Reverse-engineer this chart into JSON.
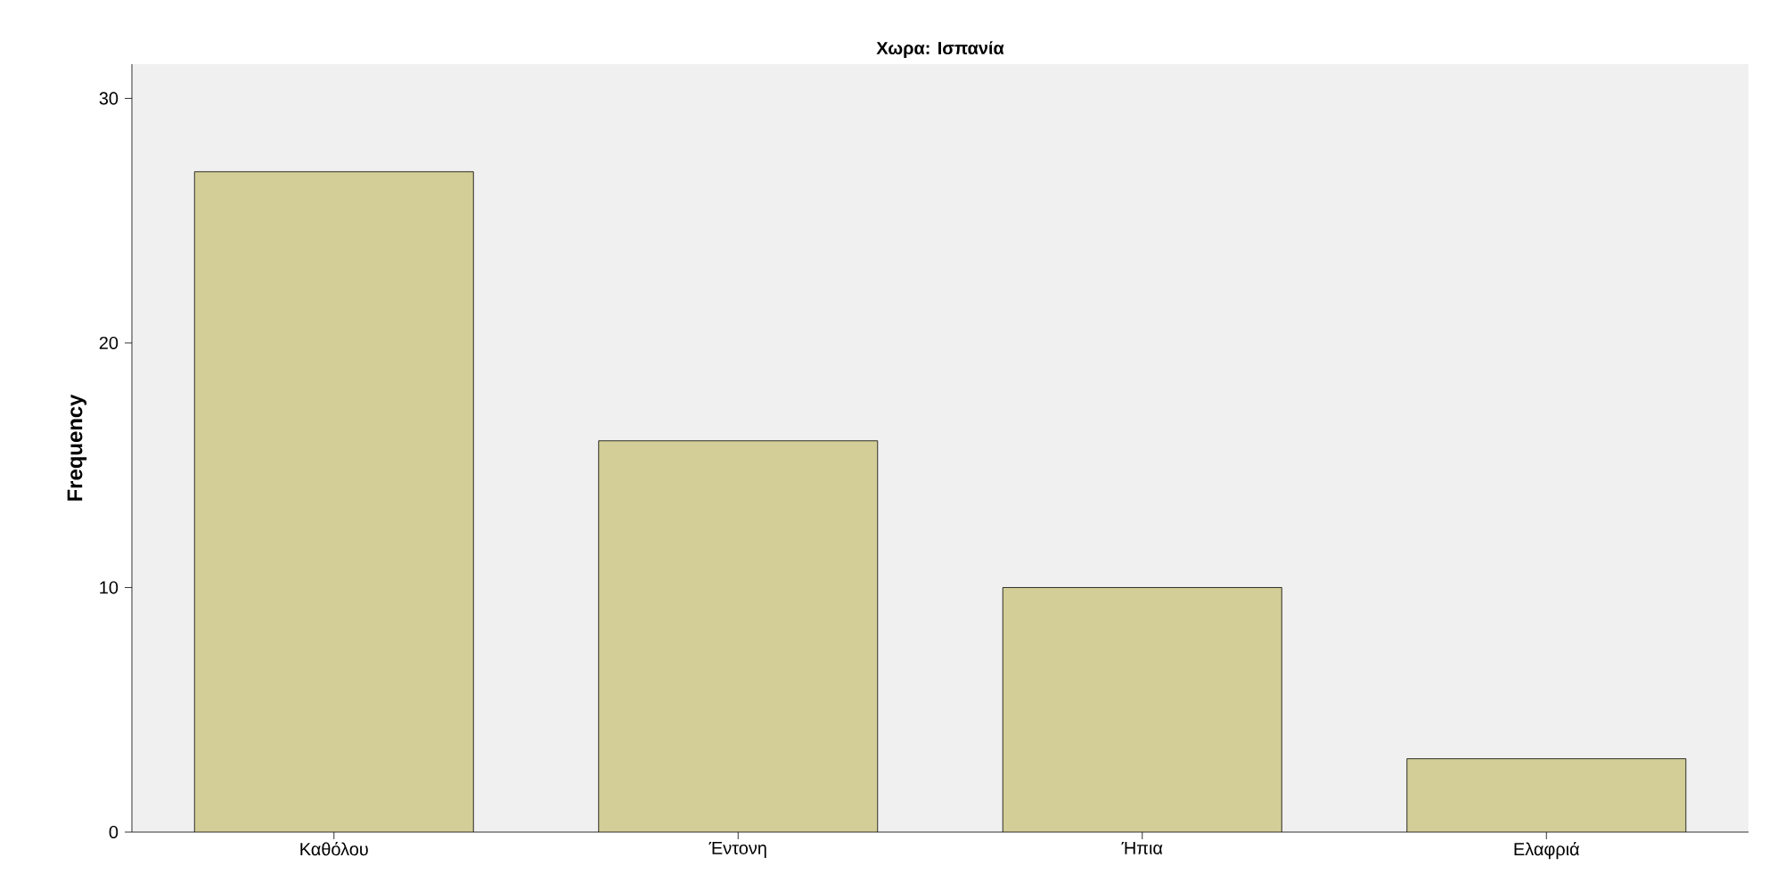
{
  "chart_data": {
    "type": "bar",
    "title": "Χωρα: Ισπανία",
    "ylabel": "Frequency",
    "categories": [
      "Καθόλου",
      "Έντονη",
      "Ήπια",
      "Ελαφριά"
    ],
    "values": [
      27,
      16,
      10,
      3
    ],
    "color": "#d3ce97",
    "ylim": [
      0,
      31.4
    ],
    "yticks": [
      0,
      10,
      20,
      30
    ],
    "grid": false
  }
}
